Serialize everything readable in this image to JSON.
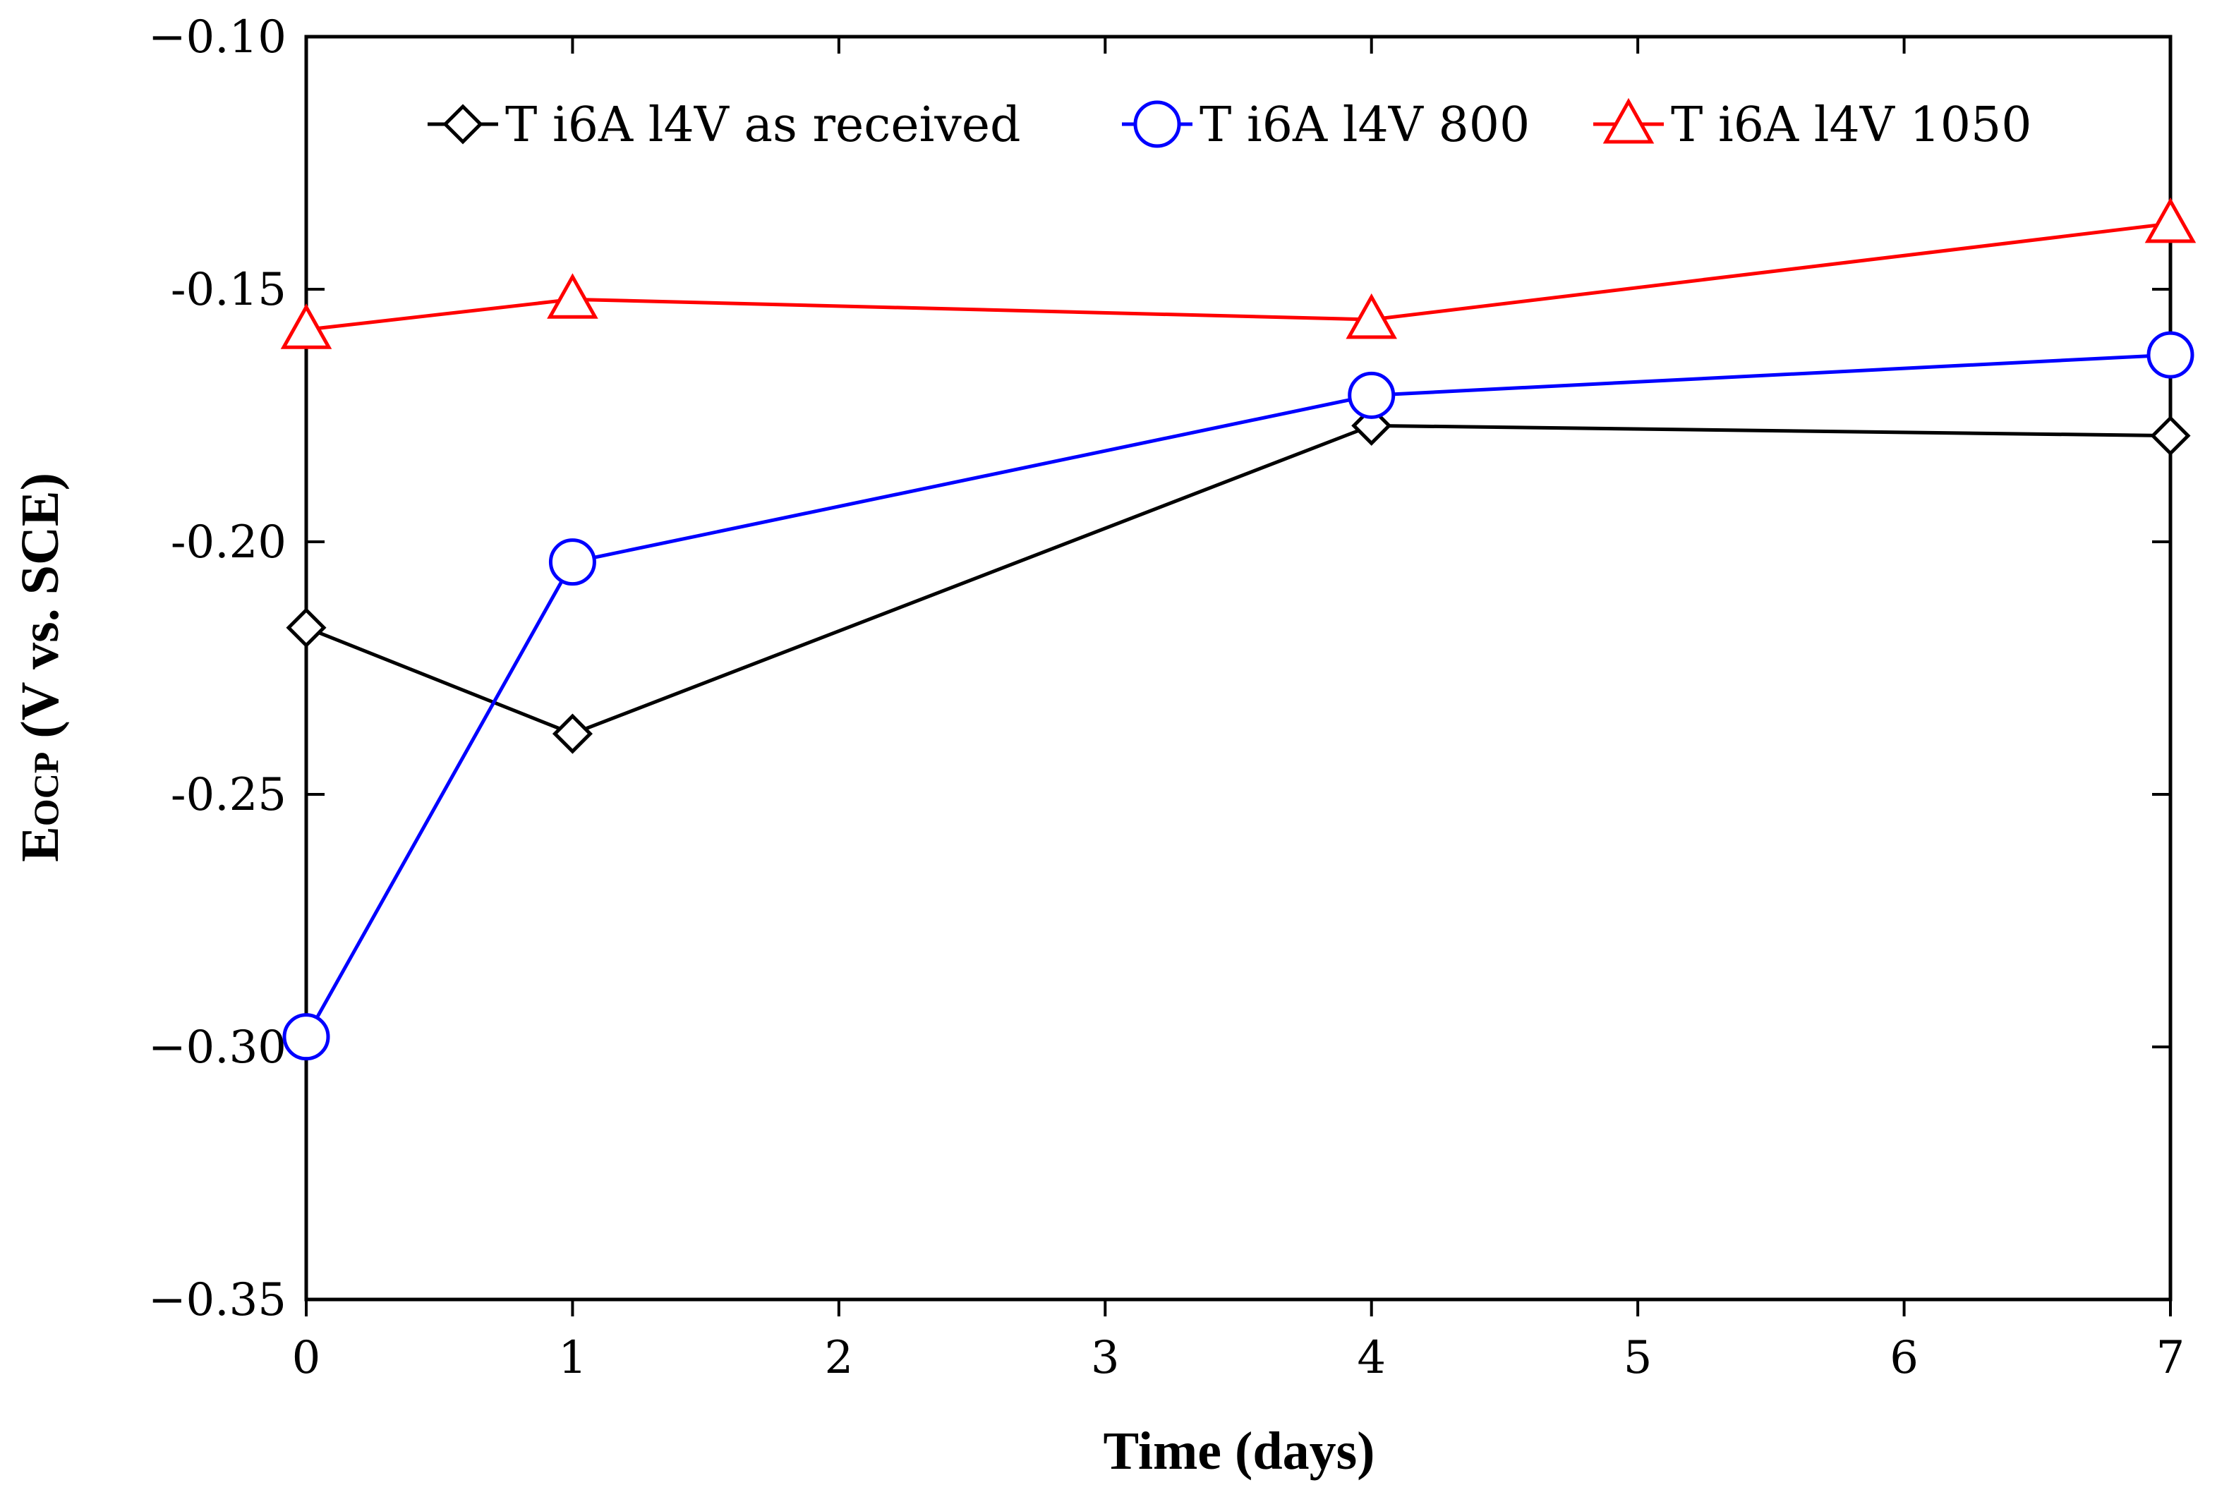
{
  "chart_data": {
    "type": "line",
    "title": "",
    "xlabel": "Time (days)",
    "ylabel_main": "E",
    "ylabel_sub": "OCP",
    "ylabel_rest": " (V vs. SCE)",
    "xlim": [
      0,
      7
    ],
    "ylim": [
      -0.35,
      -0.1
    ],
    "xticks": [
      0,
      1,
      2,
      3,
      4,
      5,
      6,
      7
    ],
    "xtick_labels": [
      "0",
      "1",
      "2",
      "3",
      "4",
      "5",
      "6",
      "7"
    ],
    "yticks": [
      -0.1,
      -0.15,
      -0.2,
      -0.25,
      -0.3,
      -0.35
    ],
    "ytick_labels": [
      "−0.10",
      "-0.15",
      "-0.20",
      "-0.25",
      "−0.30",
      "−0.35"
    ],
    "grid": false,
    "legend_position": "top",
    "series": [
      {
        "name": "Ti6Al4V as received",
        "color": "#000000",
        "marker": "diamond",
        "x": [
          0,
          1,
          4,
          7
        ],
        "values": [
          -0.217,
          -0.238,
          -0.177,
          -0.179
        ]
      },
      {
        "name": "Ti6Al4V 800",
        "color": "#0000ff",
        "marker": "circle",
        "x": [
          0,
          1,
          4,
          7
        ],
        "values": [
          -0.298,
          -0.204,
          -0.171,
          -0.163
        ]
      },
      {
        "name": "Ti6Al4V 1050",
        "color": "#ff0000",
        "marker": "triangle",
        "x": [
          0,
          1,
          4,
          7
        ],
        "values": [
          -0.158,
          -0.152,
          -0.156,
          -0.137
        ]
      }
    ],
    "legend_labels": [
      "T i6A l4V  as received",
      "T i6A l4V 800",
      "T i6A l4V 1050"
    ]
  }
}
